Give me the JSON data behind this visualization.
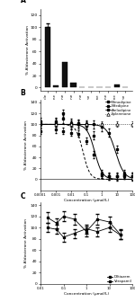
{
  "panel_A": {
    "categories": [
      "Vehicle",
      "Nifedipine",
      "Amodipine",
      "Nicardipine",
      "Felodipine",
      "Isradipine",
      "Nimodipine",
      "Nitrendipine",
      "Nisoldipine",
      "Eplerenone"
    ],
    "values": [
      100,
      3,
      43,
      8,
      1,
      1,
      1,
      1,
      5,
      1
    ],
    "bar_color": "#111111",
    "ylabel": "% Aldosterone Activation",
    "ylim": [
      -5,
      130
    ],
    "yticks": [
      0,
      20,
      40,
      60,
      80,
      100,
      120
    ],
    "label": "A"
  },
  "panel_B": {
    "ylabel": "% Aldosterone Activation",
    "xlabel": "Concentration (μmol/L)",
    "ylim": [
      -20,
      145
    ],
    "yticks": [
      0,
      20,
      40,
      60,
      80,
      100,
      120,
      140
    ],
    "label": "B",
    "nimodipine_x": [
      0.0001,
      0.001,
      0.003,
      0.01,
      0.03,
      0.1,
      0.3,
      1,
      3,
      10,
      30,
      100
    ],
    "nimodipine_y": [
      100,
      105,
      120,
      103,
      100,
      97,
      80,
      10,
      6,
      5,
      7,
      5
    ],
    "nifedipine_x": [
      0.0001,
      0.001,
      0.003,
      0.01,
      0.03,
      0.1,
      0.3,
      1,
      3,
      10,
      30,
      100
    ],
    "nifedipine_y": [
      88,
      90,
      88,
      85,
      83,
      70,
      45,
      8,
      5,
      5,
      6,
      5
    ],
    "amlodipine_x": [
      0.0001,
      0.001,
      0.003,
      0.01,
      0.03,
      0.1,
      0.3,
      1,
      3,
      10,
      30,
      100
    ],
    "amlodipine_y": [
      105,
      103,
      110,
      100,
      102,
      100,
      100,
      95,
      85,
      55,
      10,
      6
    ],
    "eplerenone_x": [
      0.001,
      0.01,
      0.1,
      1,
      10,
      100
    ],
    "eplerenone_y": [
      100,
      100,
      100,
      100,
      100,
      100
    ],
    "legend": [
      "Nimodipine",
      "Nifedipine",
      "Amlodipine",
      "Eplerenone"
    ]
  },
  "panel_C": {
    "ylabel": "% Aldosterone Activation",
    "xlabel": "Concentration (μmol/L)",
    "ylim": [
      0,
      145
    ],
    "yticks": [
      0,
      20,
      40,
      60,
      80,
      100,
      120,
      140
    ],
    "label": "C",
    "diltiazem_x": [
      0.02,
      0.05,
      0.1,
      0.3,
      1,
      3,
      10,
      30
    ],
    "diltiazem_y": [
      118,
      108,
      120,
      115,
      93,
      115,
      110,
      88
    ],
    "verapamil_x": [
      0.02,
      0.05,
      0.1,
      0.3,
      1,
      3,
      10,
      30
    ],
    "verapamil_y": [
      100,
      97,
      83,
      90,
      98,
      93,
      100,
      87
    ],
    "legend": [
      "Diltiazem",
      "Verapamil"
    ]
  }
}
